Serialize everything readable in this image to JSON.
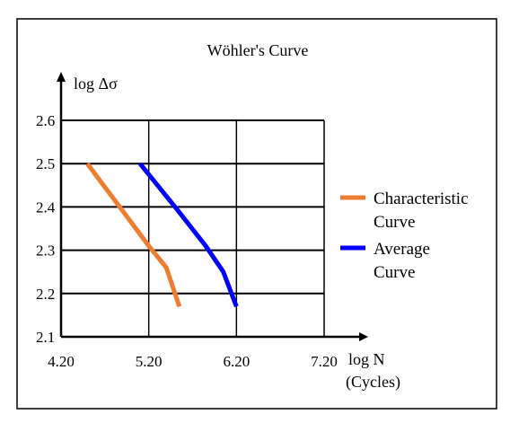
{
  "chart_data": {
    "type": "line",
    "title": "Wöhler's Curve",
    "ylabel": "log Δσ",
    "xlabel": "log N",
    "xlabel_sub": "(Cycles)",
    "xlim": [
      4.2,
      7.2
    ],
    "ylim": [
      2.1,
      2.6
    ],
    "xticks": [
      "4.20",
      "5.20",
      "6.20",
      "7.20"
    ],
    "yticks": [
      "2.1",
      "2.2",
      "2.3",
      "2.4",
      "2.5",
      "2.6"
    ],
    "grid": true,
    "legend_position": "right",
    "series": [
      {
        "name_lines": [
          "Characteristic",
          "Curve"
        ],
        "color": "#ed7d31",
        "points": [
          [
            4.5,
            2.5
          ],
          [
            5.2,
            2.31
          ],
          [
            5.4,
            2.26
          ],
          [
            5.55,
            2.17
          ]
        ]
      },
      {
        "name_lines": [
          "Average",
          "Curve"
        ],
        "color": "#0000ff",
        "points": [
          [
            5.1,
            2.5
          ],
          [
            5.5,
            2.4
          ],
          [
            5.85,
            2.31
          ],
          [
            6.05,
            2.25
          ],
          [
            6.2,
            2.17
          ]
        ]
      }
    ]
  }
}
